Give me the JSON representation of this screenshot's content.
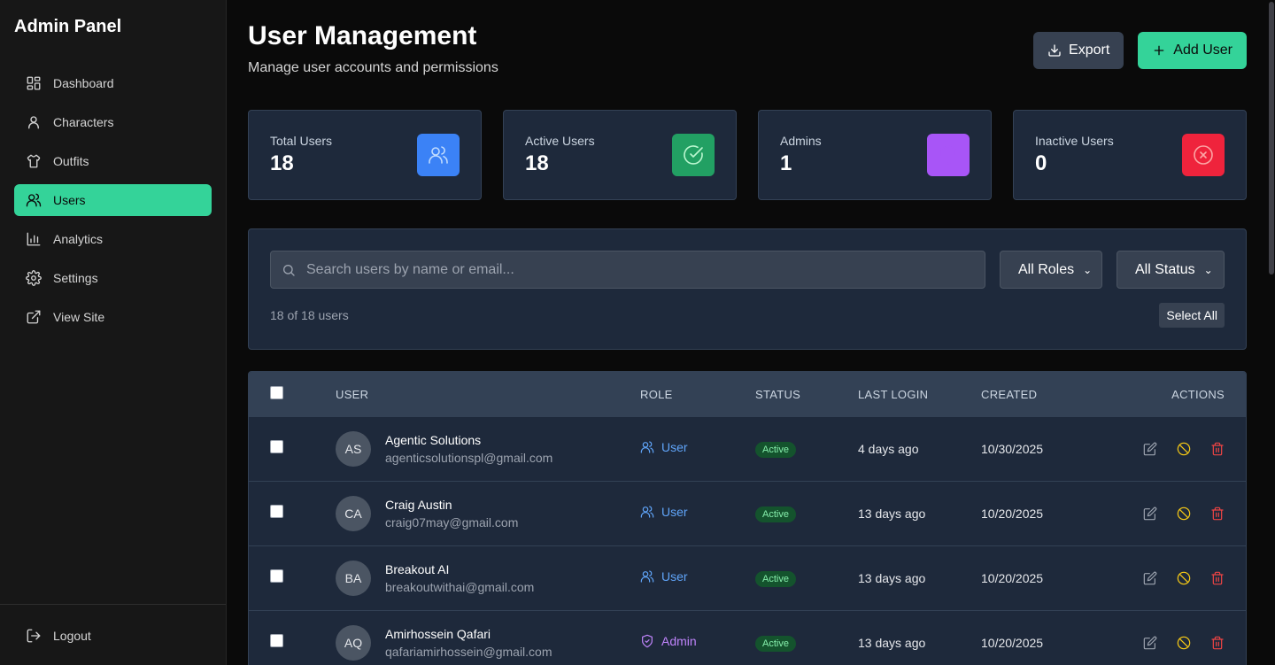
{
  "sidebar": {
    "title": "Admin Panel",
    "items": [
      {
        "label": "Dashboard",
        "icon": "dashboard-icon"
      },
      {
        "label": "Characters",
        "icon": "user-icon"
      },
      {
        "label": "Outfits",
        "icon": "shirt-icon"
      },
      {
        "label": "Users",
        "icon": "users-icon",
        "active": true
      },
      {
        "label": "Analytics",
        "icon": "bar-chart-icon"
      },
      {
        "label": "Settings",
        "icon": "gear-icon"
      },
      {
        "label": "View Site",
        "icon": "external-link-icon"
      }
    ],
    "logout": "Logout"
  },
  "header": {
    "title": "User Management",
    "subtitle": "Manage user accounts and permissions",
    "export_label": "Export",
    "add_label": "Add User"
  },
  "stats": [
    {
      "label": "Total Users",
      "value": "18",
      "color": "#3b82f6",
      "icon": "users-icon"
    },
    {
      "label": "Active Users",
      "value": "18",
      "color": "#22a063",
      "icon": "check-circle-icon"
    },
    {
      "label": "Admins",
      "value": "1",
      "color": "#a855f7",
      "icon": "shield-icon"
    },
    {
      "label": "Inactive Users",
      "value": "0",
      "color": "#ef233c",
      "icon": "x-circle-icon"
    }
  ],
  "filters": {
    "search_placeholder": "Search users by name or email...",
    "role_select": "All Roles",
    "status_select": "All Status",
    "count": "18 of 18 users",
    "select_all": "Select All"
  },
  "table": {
    "headers": {
      "user": "USER",
      "role": "ROLE",
      "status": "STATUS",
      "last_login": "LAST LOGIN",
      "created": "CREATED",
      "actions": "ACTIONS"
    },
    "rows": [
      {
        "initials": "AS",
        "name": "Agentic Solutions",
        "email": "agenticsolutionspl@gmail.com",
        "role": "User",
        "status": "Active",
        "last_login": "4 days ago",
        "created": "10/30/2025"
      },
      {
        "initials": "CA",
        "name": "Craig Austin",
        "email": "craig07may@gmail.com",
        "role": "User",
        "status": "Active",
        "last_login": "13 days ago",
        "created": "10/20/2025"
      },
      {
        "initials": "BA",
        "name": "Breakout AI",
        "email": "breakoutwithai@gmail.com",
        "role": "User",
        "status": "Active",
        "last_login": "13 days ago",
        "created": "10/20/2025"
      },
      {
        "initials": "AQ",
        "name": "Amirhossein Qafari",
        "email": "qafariamirhossein@gmail.com",
        "role": "Admin",
        "status": "Active",
        "last_login": "13 days ago",
        "created": "10/20/2025"
      }
    ]
  },
  "colors": {
    "accent": "#34d399",
    "user_role": "#60a5fa",
    "admin_role": "#c084fc"
  }
}
